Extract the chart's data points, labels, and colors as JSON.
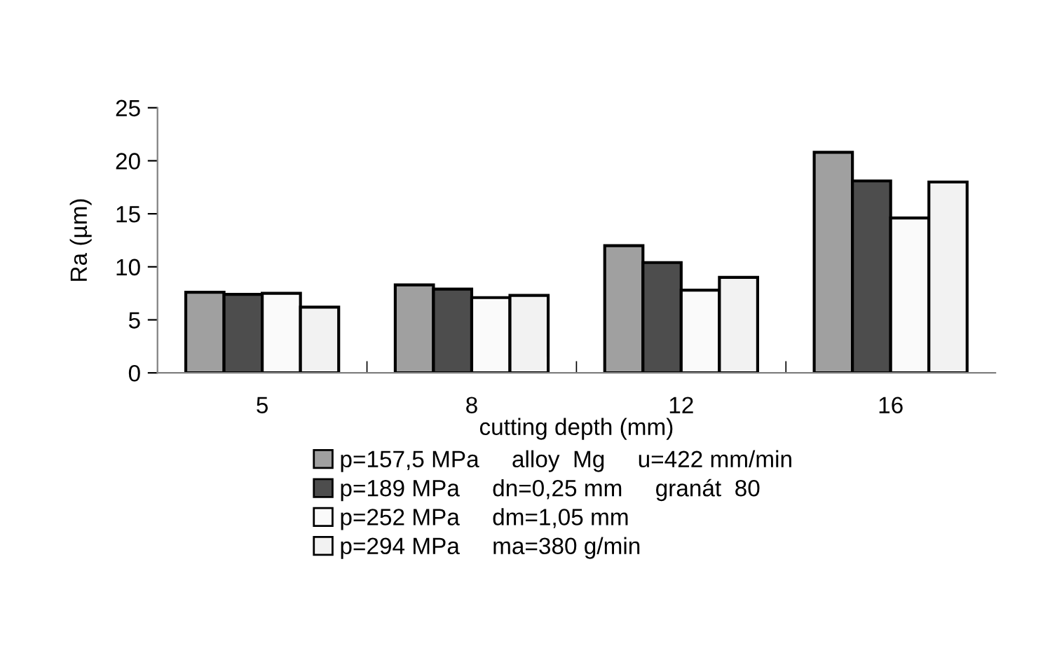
{
  "chart_data": {
    "type": "bar",
    "xlabel": "cutting depth (mm)",
    "ylabel": "Ra (µm)",
    "categories": [
      "5",
      "8",
      "12",
      "16"
    ],
    "series": [
      {
        "name": "p=157,5 MPa     alloy  Mg     u=422 mm/min",
        "color": "#a0a0a0",
        "values": [
          7.6,
          8.3,
          12.0,
          20.8
        ]
      },
      {
        "name": "p=189 MPa     dn=0,25 mm     granát  80",
        "color": "#4d4d4d",
        "values": [
          7.4,
          7.9,
          10.4,
          18.1
        ]
      },
      {
        "name": "p=252 MPa     dm=1,05 mm",
        "color": "#fafafa",
        "values": [
          7.5,
          7.1,
          7.8,
          14.6
        ]
      },
      {
        "name": "p=294 MPa     ma=380 g/min",
        "color": "#f2f2f2",
        "values": [
          6.2,
          7.3,
          9.0,
          18.0
        ]
      }
    ],
    "ylim": [
      0,
      25
    ],
    "yticks": [
      0,
      5,
      10,
      15,
      20,
      25
    ],
    "grid": false,
    "legend": "bottom"
  }
}
